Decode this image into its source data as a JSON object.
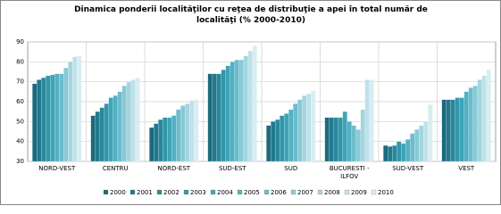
{
  "chart_data": {
    "type": "bar",
    "title": "Dinamica ponderii localităţilor cu reţea de distribuţie a apei în total număr de localităţi (% 2000-2010)",
    "categories": [
      "NORD-VEST",
      "CENTRU",
      "NORD-EST",
      "SUD-EST",
      "SUD",
      "BUCURESTI - ILFOV",
      "SUD-VEST",
      "VEST"
    ],
    "series": [
      {
        "name": "2000",
        "color": "#1b6a7e",
        "values": [
          69,
          53,
          47,
          74,
          48,
          52,
          38,
          61
        ]
      },
      {
        "name": "2001",
        "color": "#22788d",
        "values": [
          71,
          55,
          49,
          74,
          50,
          52,
          37.5,
          61
        ]
      },
      {
        "name": "2002",
        "color": "#2a879b",
        "values": [
          72,
          57,
          51,
          74,
          51,
          52,
          38,
          61
        ]
      },
      {
        "name": "2003",
        "color": "#3396aa",
        "values": [
          73,
          59,
          52,
          76,
          53,
          52,
          40,
          62
        ]
      },
      {
        "name": "2004",
        "color": "#3ea5b8",
        "values": [
          73.5,
          62,
          52,
          78,
          54,
          55,
          39,
          62
        ]
      },
      {
        "name": "2005",
        "color": "#52b1c3",
        "values": [
          74,
          63,
          53,
          80,
          56,
          50,
          41,
          65
        ]
      },
      {
        "name": "2006",
        "color": "#6cbdcc",
        "values": [
          74,
          65,
          56,
          81,
          59,
          48,
          44,
          67
        ]
      },
      {
        "name": "2007",
        "color": "#88c9d6",
        "values": [
          77,
          68,
          58,
          81,
          61,
          46,
          46,
          68
        ]
      },
      {
        "name": "2008",
        "color": "#a4d5df",
        "values": [
          80,
          70,
          59,
          83,
          63,
          56,
          48,
          71
        ]
      },
      {
        "name": "2009",
        "color": "#bfe1e8",
        "values": [
          82.5,
          71,
          60.5,
          85.5,
          64,
          71,
          50,
          73
        ]
      },
      {
        "name": "2010",
        "color": "#d8edf2",
        "values": [
          83,
          72,
          61,
          88,
          65.5,
          71,
          58.5,
          76
        ]
      }
    ],
    "ylim": [
      30,
      90
    ],
    "yticks": [
      30,
      40,
      50,
      60,
      70,
      80,
      90
    ],
    "grid": true
  }
}
